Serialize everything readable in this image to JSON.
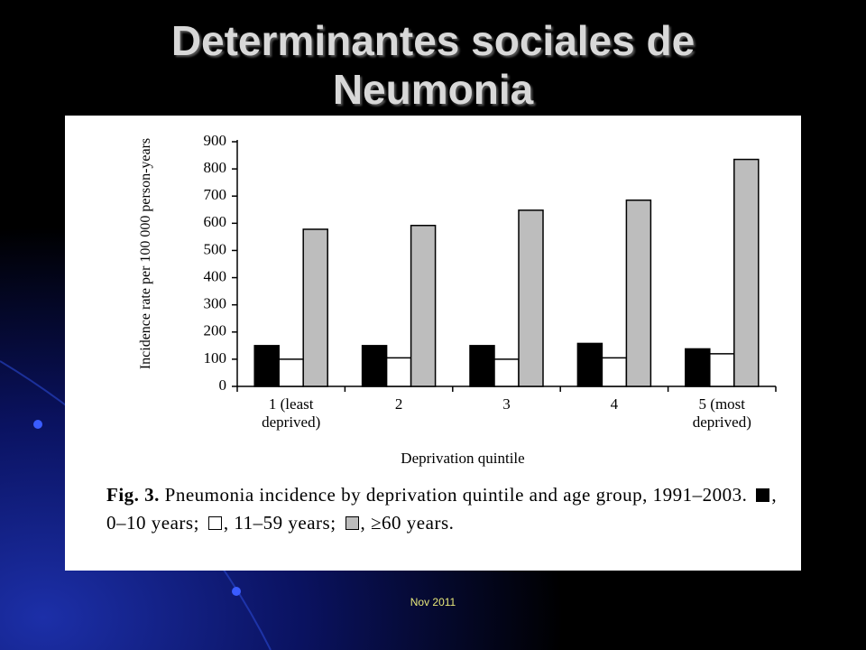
{
  "slide": {
    "title": "Determinantes sociales de Neumonia",
    "footer": "Nov 2011"
  },
  "chart_data": {
    "type": "bar",
    "caption_label": "Fig. 3.",
    "caption": "Pneumonia incidence by deprivation quintile and age group, 1991–2003.",
    "ylabel": "Incidence rate per 100 000 person-years",
    "xlabel": "Deprivation quintile",
    "categories": [
      "1 (least deprived)",
      "2",
      "3",
      "4",
      "5 (most deprived)"
    ],
    "series": [
      {
        "name": "0–10 years",
        "color": "#000000",
        "values": [
          150,
          150,
          150,
          158,
          138
        ]
      },
      {
        "name": "11–59 years",
        "color": "#ffffff",
        "values": [
          100,
          105,
          100,
          105,
          120
        ]
      },
      {
        "name": "≥60 years",
        "color": "#bdbdbd",
        "values": [
          578,
          592,
          648,
          685,
          835
        ]
      }
    ],
    "ylim": [
      0,
      900
    ],
    "yticks": [
      0,
      100,
      200,
      300,
      400,
      500,
      600,
      700,
      800,
      900
    ],
    "grid": false
  }
}
